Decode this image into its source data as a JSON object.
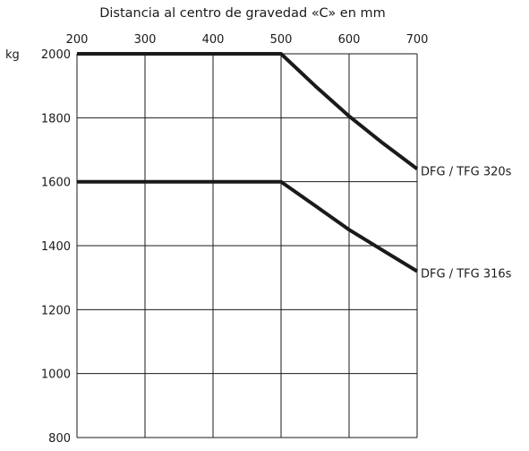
{
  "chart_data": {
    "type": "line",
    "title": "",
    "xlabel": "Distancia al centro de gravedad «C» en mm",
    "ylabel": "kg",
    "xlim": [
      200,
      700
    ],
    "ylim": [
      800,
      2000
    ],
    "x_ticks": [
      200,
      300,
      400,
      500,
      600,
      700
    ],
    "y_ticks": [
      800,
      1000,
      1200,
      1400,
      1600,
      1800,
      2000
    ],
    "x_tick_labels": [
      "200",
      "300",
      "400",
      "500",
      "600",
      "700"
    ],
    "y_tick_labels": [
      "800",
      "1000",
      "1200",
      "1400",
      "1600",
      "1800",
      "2000"
    ],
    "x_axis_position": "top",
    "grid": true,
    "legend": "none",
    "series": [
      {
        "name": "DFG / TFG 320s",
        "color": "#1a1a1a",
        "points": [
          {
            "x": 200,
            "y": 2000
          },
          {
            "x": 500,
            "y": 2000
          },
          {
            "x": 550,
            "y": 1900
          },
          {
            "x": 600,
            "y": 1805
          },
          {
            "x": 650,
            "y": 1720
          },
          {
            "x": 700,
            "y": 1640
          }
        ]
      },
      {
        "name": "DFG / TFG 316s",
        "color": "#1a1a1a",
        "points": [
          {
            "x": 200,
            "y": 1600
          },
          {
            "x": 500,
            "y": 1600
          },
          {
            "x": 550,
            "y": 1525
          },
          {
            "x": 600,
            "y": 1450
          },
          {
            "x": 650,
            "y": 1385
          },
          {
            "x": 700,
            "y": 1320
          }
        ]
      }
    ]
  }
}
